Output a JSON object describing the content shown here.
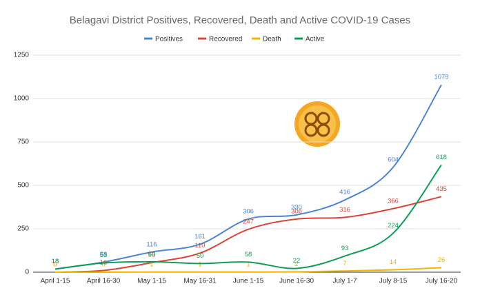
{
  "chart_data": {
    "type": "line",
    "title": "Belagavi District Positives, Recovered, Death and Active COVID-19 Cases",
    "categories": [
      "April 1-15",
      "April 16-30",
      "May 1-15",
      "May 16-31",
      "June 1-15",
      "June 16-30",
      "July 1-7",
      "July 8-15",
      "July 16-20"
    ],
    "series": [
      {
        "name": "Positives",
        "color": "#4a86d4",
        "values": [
          18,
          58,
          116,
          161,
          306,
          330,
          416,
          604,
          1079
        ]
      },
      {
        "name": "Recovered",
        "color": "#db4437",
        "values": [
          0,
          10,
          55,
          110,
          247,
          306,
          316,
          366,
          435
        ]
      },
      {
        "name": "Death",
        "color": "#f4b400",
        "values": [
          0,
          0,
          1,
          1,
          1,
          2,
          7,
          14,
          26
        ]
      },
      {
        "name": "Active",
        "color": "#0f9d58",
        "values": [
          18,
          53,
          60,
          50,
          58,
          22,
          93,
          224,
          618
        ]
      }
    ],
    "ylim": [
      0,
      1250
    ],
    "yticks": [
      0,
      250,
      500,
      750,
      1000,
      1250
    ],
    "grid": true,
    "legend": "top"
  }
}
